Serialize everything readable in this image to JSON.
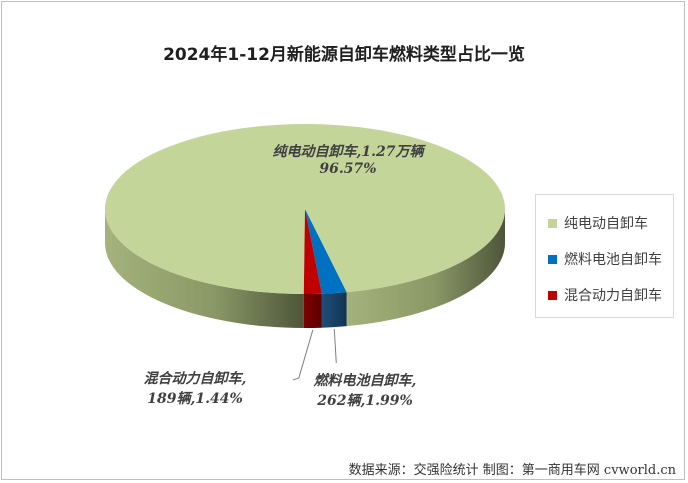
{
  "chart_data": {
    "type": "pie",
    "title": "2024年1-12月新能源自卸车燃料类型占比一览",
    "series": [
      {
        "name": "纯电动自卸车",
        "value_text": "1.27万辆",
        "value": 12700,
        "percent": 96.57,
        "percent_text": "96.57%",
        "color": "#c4d59a"
      },
      {
        "name": "燃料电池自卸车",
        "value_text": "262辆",
        "value": 262,
        "percent": 1.99,
        "percent_text": "1.99%",
        "color": "#0070c0"
      },
      {
        "name": "混合动力自卸车",
        "value_text": "189辆",
        "value": 189,
        "percent": 1.44,
        "percent_text": "1.44%",
        "color": "#c00000"
      }
    ],
    "legend": {
      "position": "right",
      "items": [
        "纯电动自卸车",
        "燃料电池自卸车",
        "混合动力自卸车"
      ]
    },
    "labels": {
      "bev": {
        "line1": "纯电动自卸车,1.27万辆",
        "line2": "96.57%"
      },
      "fcev": {
        "line1": "燃料电池自卸车,",
        "line2": "262辆,1.99%"
      },
      "hybrid": {
        "line1": "混合动力自卸车,",
        "line2": "189辆,1.44%"
      }
    }
  },
  "footer": "数据来源：交强险统计 制图：第一商用车网 cvworld.cn"
}
